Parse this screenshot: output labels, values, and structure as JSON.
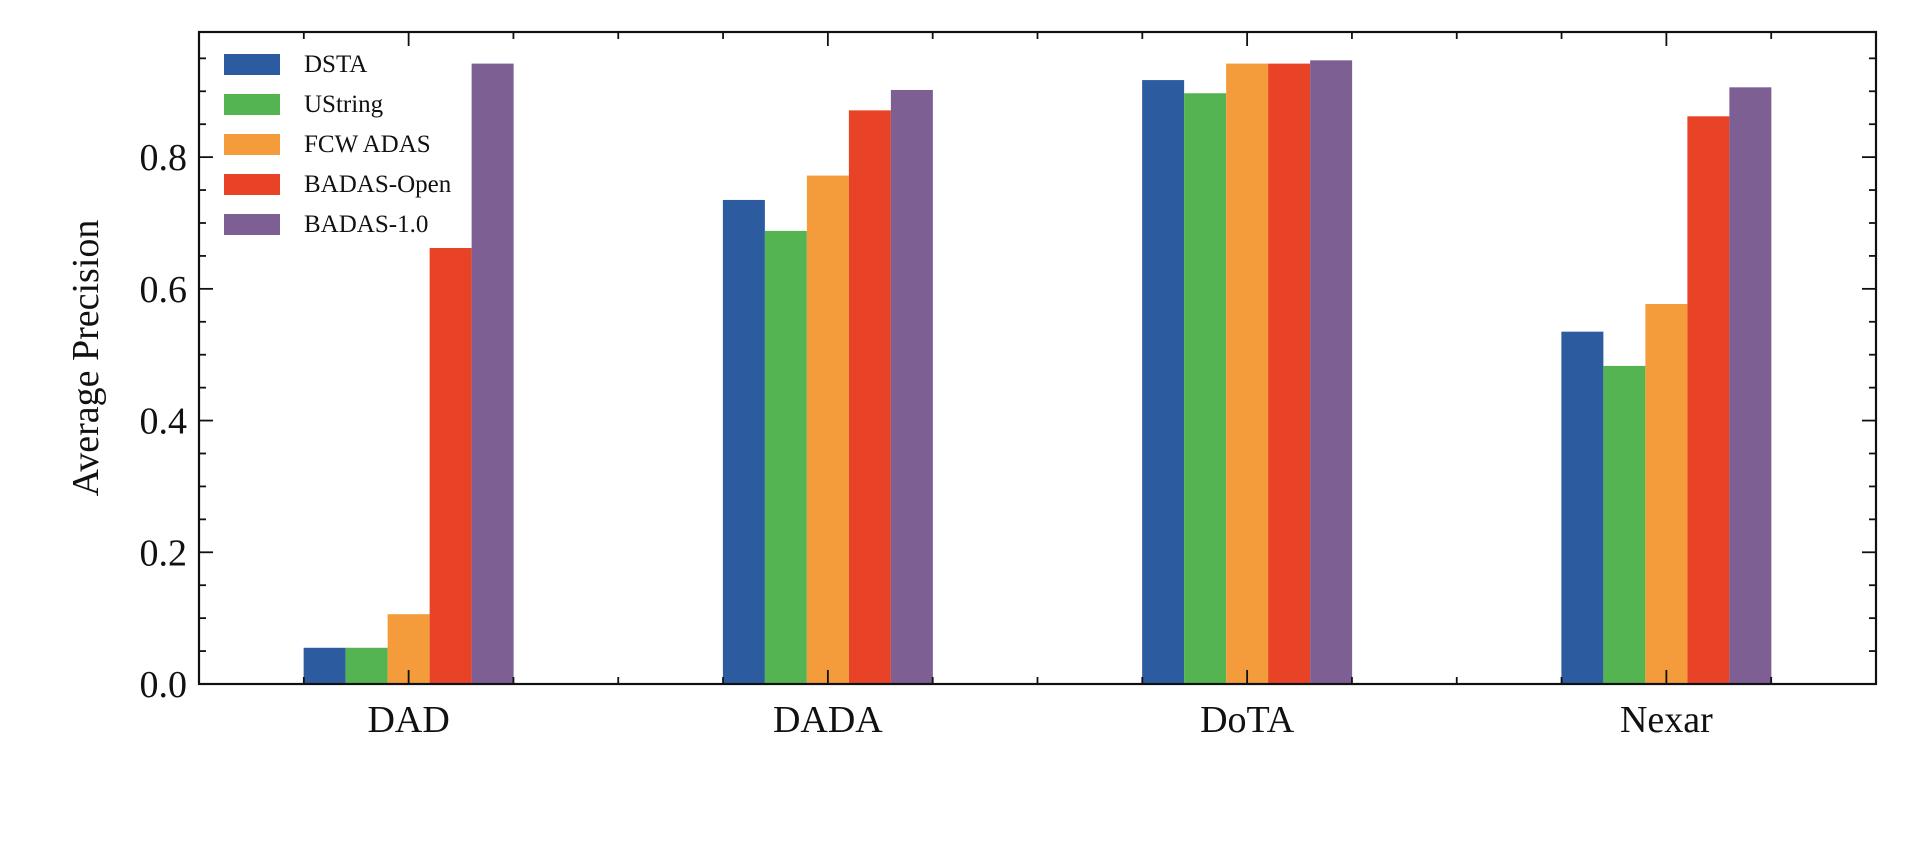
{
  "chart_data": {
    "type": "bar",
    "title": "",
    "xlabel": "",
    "ylabel": "Average Precision",
    "categories": [
      "DAD",
      "DADA",
      "DoTA",
      "Nexar"
    ],
    "ylim": [
      0,
      0.99
    ],
    "yticks": [
      "0.0",
      "0.2",
      "0.4",
      "0.6",
      "0.8"
    ],
    "ytick_values": [
      0,
      0.2,
      0.4,
      0.6,
      0.8
    ],
    "ytick_minor_step": 0.05,
    "grid": false,
    "legend": "top-left",
    "colors": {
      "DSTA": "#2c5ba0",
      "UString": "#55b452",
      "FCW ADAS": "#f49c3b",
      "BADAS-Open": "#e84326",
      "BADAS-1.0": "#7e5f93"
    },
    "series": [
      {
        "name": "DSTA",
        "values": [
          0.055,
          0.735,
          0.917,
          0.535
        ]
      },
      {
        "name": "UString",
        "values": [
          0.055,
          0.688,
          0.897,
          0.483
        ]
      },
      {
        "name": "FCW ADAS",
        "values": [
          0.106,
          0.772,
          0.942,
          0.577
        ]
      },
      {
        "name": "BADAS-Open",
        "values": [
          0.662,
          0.871,
          0.942,
          0.862
        ]
      },
      {
        "name": "BADAS-1.0",
        "values": [
          0.942,
          0.902,
          0.947,
          0.906
        ]
      }
    ]
  }
}
